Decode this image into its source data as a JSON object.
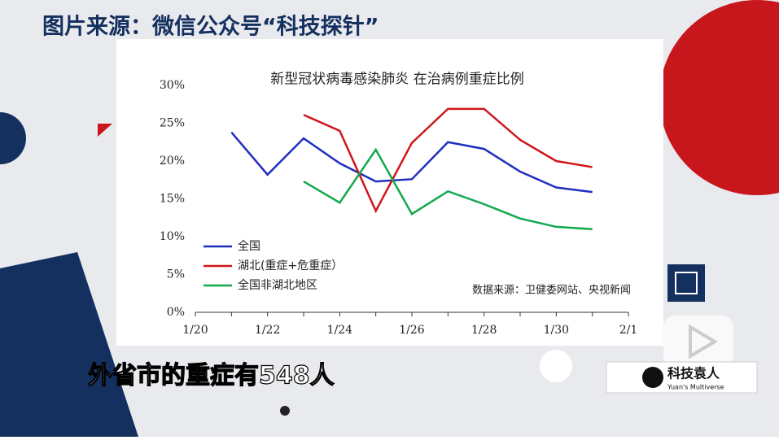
{
  "header": {
    "title": "图片来源：微信公众号“科技探针”"
  },
  "caption": "外省市的重症有548人",
  "logo": {
    "name": "科技袁人",
    "subtitle": "Yuan's Multiverse"
  },
  "chart_data": {
    "type": "line",
    "title": "新型冠状病毒感染肺炎 在治病例重症比例",
    "annotation": "数据来源：卫健委网站、央视新闻",
    "categories": [
      "1/20",
      null,
      "1/22",
      null,
      "1/24",
      null,
      "1/26",
      null,
      "1/28",
      null,
      "1/30",
      null,
      "2/1"
    ],
    "series": [
      {
        "name": "全国",
        "color": "#1f2fbf",
        "values": [
          null,
          23.8,
          18.2,
          23.0,
          19.7,
          17.3,
          17.6,
          22.5,
          21.6,
          18.6,
          16.5,
          15.9,
          null
        ]
      },
      {
        "name": "湖北(重症+危重症）",
        "color": "#d0161b",
        "values": [
          null,
          null,
          null,
          26.1,
          24.0,
          13.4,
          22.4,
          26.9,
          26.9,
          22.8,
          20.0,
          19.2,
          null
        ]
      },
      {
        "name": "全国非湖北地区",
        "color": "#12a84c",
        "values": [
          null,
          null,
          null,
          17.3,
          14.5,
          21.5,
          13.0,
          16.0,
          14.3,
          12.4,
          11.3,
          11.0,
          null
        ]
      }
    ],
    "ylim": [
      0,
      30
    ],
    "yticks": [
      {
        "value": 0,
        "label": "0%"
      },
      {
        "value": 5,
        "label": "5%"
      },
      {
        "value": 10,
        "label": "10%"
      },
      {
        "value": 15,
        "label": "15%"
      },
      {
        "value": 20,
        "label": "20%"
      },
      {
        "value": 25,
        "label": "25%"
      },
      {
        "value": 30,
        "label": "30%"
      }
    ]
  }
}
